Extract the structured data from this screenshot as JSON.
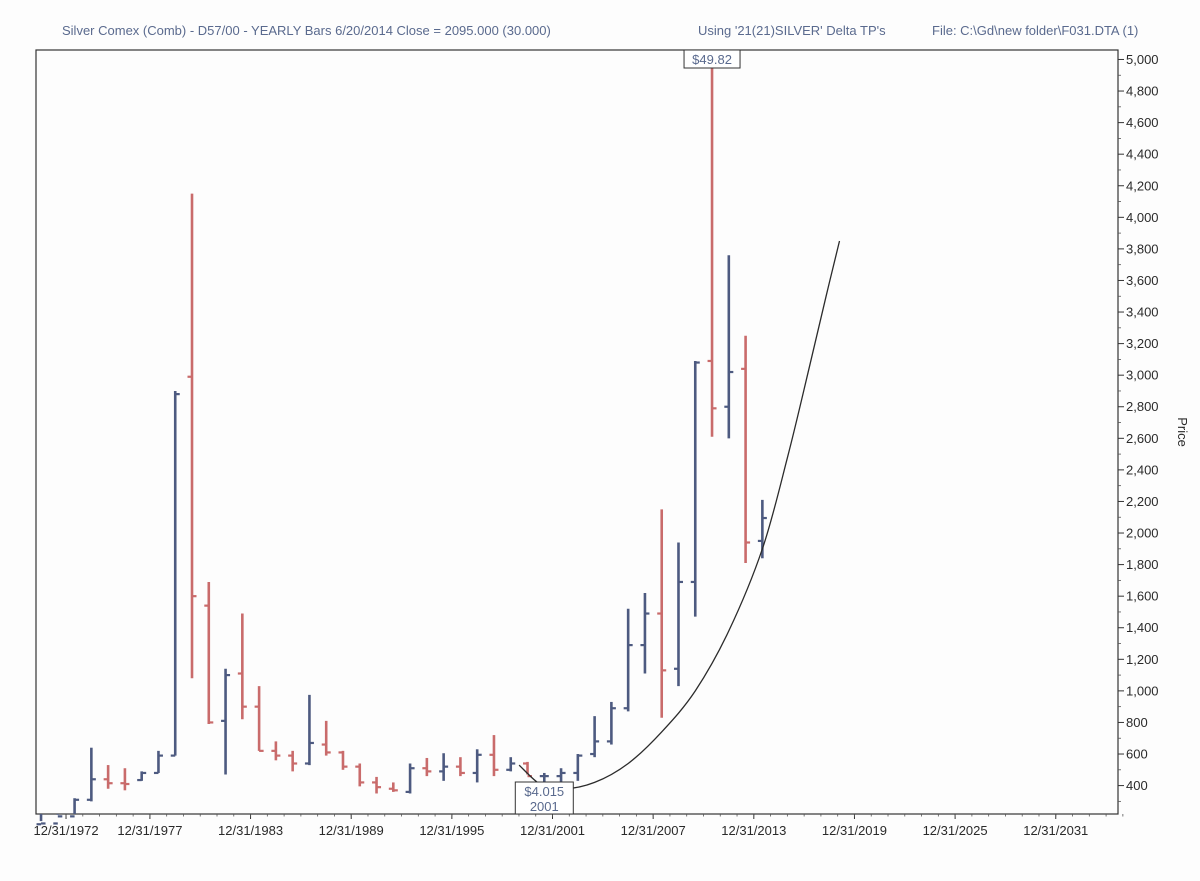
{
  "header": {
    "title": "Silver Comex (Comb) - D57/00  - YEARLY Bars  6/20/2014 Close = 2095.000 (30.000)",
    "using": "Using '21(21)SILVER' Delta TP's",
    "file": "File: C:\\Gd\\new folder\\F031.DTA (1)"
  },
  "chart_data": {
    "type": "ohlc",
    "ylabel": "Price",
    "xlabel": "",
    "ylim": [
      220,
      5060
    ],
    "xlim": [
      1971.2,
      2035.7
    ],
    "x_ticks": [
      {
        "label": "12/31/1972",
        "year": 1972.99
      },
      {
        "label": "12/31/1977",
        "year": 1977.99
      },
      {
        "label": "12/31/1983",
        "year": 1983.99
      },
      {
        "label": "12/31/1989",
        "year": 1989.99
      },
      {
        "label": "12/31/1995",
        "year": 1995.99
      },
      {
        "label": "12/31/2001",
        "year": 2001.99
      },
      {
        "label": "12/31/2007",
        "year": 2007.99
      },
      {
        "label": "12/31/2013",
        "year": 2013.99
      },
      {
        "label": "12/31/2019",
        "year": 2019.99
      },
      {
        "label": "12/31/2025",
        "year": 2025.99
      },
      {
        "label": "12/31/2031",
        "year": 2031.99
      }
    ],
    "y_ticks": [
      "400",
      "600",
      "800",
      "1,000",
      "1,200",
      "1,400",
      "1,600",
      "1,800",
      "2,000",
      "2,200",
      "2,400",
      "2,600",
      "2,800",
      "3,000",
      "3,200",
      "3,400",
      "3,600",
      "3,800",
      "4,000",
      "4,200",
      "4,400",
      "4,600",
      "4,800",
      "5,000"
    ],
    "y_tick_values": [
      400,
      600,
      800,
      1000,
      1200,
      1400,
      1600,
      1800,
      2000,
      2200,
      2400,
      2600,
      2800,
      3000,
      3200,
      3400,
      3600,
      3800,
      4000,
      4200,
      4400,
      4600,
      4800,
      5000
    ],
    "colors": {
      "up": "#4d5a80",
      "down": "#c96b6b",
      "curve": "#2b2b2b",
      "axis": "#333333"
    },
    "bars": [
      {
        "year": 1971,
        "open": 155,
        "high": 175,
        "low": 145,
        "close": 160
      },
      {
        "year": 1972,
        "open": 160,
        "high": 215,
        "low": 150,
        "close": 205
      },
      {
        "year": 1973,
        "open": 205,
        "high": 320,
        "low": 200,
        "close": 310
      },
      {
        "year": 1974,
        "open": 310,
        "high": 640,
        "low": 300,
        "close": 440
      },
      {
        "year": 1975,
        "open": 440,
        "high": 530,
        "low": 380,
        "close": 415
      },
      {
        "year": 1976,
        "open": 415,
        "high": 510,
        "low": 370,
        "close": 410
      },
      {
        "year": 1977,
        "open": 435,
        "high": 490,
        "low": 430,
        "close": 480
      },
      {
        "year": 1978,
        "open": 480,
        "high": 620,
        "low": 480,
        "close": 590
      },
      {
        "year": 1979,
        "open": 590,
        "high": 2900,
        "low": 590,
        "close": 2880
      },
      {
        "year": 1980,
        "open": 2990,
        "high": 4150,
        "low": 1080,
        "close": 1600
      },
      {
        "year": 1981,
        "open": 1540,
        "high": 1690,
        "low": 790,
        "close": 800
      },
      {
        "year": 1982,
        "open": 810,
        "high": 1140,
        "low": 470,
        "close": 1100
      },
      {
        "year": 1983,
        "open": 1110,
        "high": 1490,
        "low": 820,
        "close": 900
      },
      {
        "year": 1984,
        "open": 900,
        "high": 1030,
        "low": 620,
        "close": 620
      },
      {
        "year": 1985,
        "open": 620,
        "high": 680,
        "low": 560,
        "close": 590
      },
      {
        "year": 1986,
        "open": 590,
        "high": 620,
        "low": 490,
        "close": 540
      },
      {
        "year": 1987,
        "open": 540,
        "high": 975,
        "low": 530,
        "close": 670
      },
      {
        "year": 1988,
        "open": 660,
        "high": 810,
        "low": 590,
        "close": 610
      },
      {
        "year": 1989,
        "open": 610,
        "high": 620,
        "low": 500,
        "close": 520
      },
      {
        "year": 1990,
        "open": 520,
        "high": 540,
        "low": 395,
        "close": 420
      },
      {
        "year": 1991,
        "open": 420,
        "high": 455,
        "low": 350,
        "close": 390
      },
      {
        "year": 1992,
        "open": 380,
        "high": 420,
        "low": 360,
        "close": 370
      },
      {
        "year": 1993,
        "open": 360,
        "high": 540,
        "low": 350,
        "close": 510
      },
      {
        "year": 1994,
        "open": 510,
        "high": 575,
        "low": 460,
        "close": 490
      },
      {
        "year": 1995,
        "open": 490,
        "high": 605,
        "low": 430,
        "close": 520
      },
      {
        "year": 1996,
        "open": 520,
        "high": 580,
        "low": 460,
        "close": 480
      },
      {
        "year": 1997,
        "open": 480,
        "high": 630,
        "low": 420,
        "close": 595
      },
      {
        "year": 1998,
        "open": 595,
        "high": 720,
        "low": 460,
        "close": 500
      },
      {
        "year": 1999,
        "open": 500,
        "high": 580,
        "low": 490,
        "close": 540
      },
      {
        "year": 2000,
        "open": 540,
        "high": 550,
        "low": 470,
        "close": 460
      },
      {
        "year": 2001,
        "open": 460,
        "high": 480,
        "low": 401,
        "close": 460
      },
      {
        "year": 2002,
        "open": 460,
        "high": 510,
        "low": 420,
        "close": 480
      },
      {
        "year": 2003,
        "open": 480,
        "high": 600,
        "low": 430,
        "close": 590
      },
      {
        "year": 2004,
        "open": 600,
        "high": 840,
        "low": 580,
        "close": 680
      },
      {
        "year": 2005,
        "open": 680,
        "high": 930,
        "low": 660,
        "close": 890
      },
      {
        "year": 2006,
        "open": 890,
        "high": 1520,
        "low": 870,
        "close": 1290
      },
      {
        "year": 2007,
        "open": 1290,
        "high": 1620,
        "low": 1110,
        "close": 1490
      },
      {
        "year": 2008,
        "open": 1490,
        "high": 2150,
        "low": 830,
        "close": 1130
      },
      {
        "year": 2009,
        "open": 1140,
        "high": 1940,
        "low": 1030,
        "close": 1690
      },
      {
        "year": 2010,
        "open": 1690,
        "high": 3090,
        "low": 1470,
        "close": 3080
      },
      {
        "year": 2011,
        "open": 3090,
        "high": 4982,
        "low": 2610,
        "close": 2790
      },
      {
        "year": 2012,
        "open": 2800,
        "high": 3760,
        "low": 2600,
        "close": 3020
      },
      {
        "year": 2013,
        "open": 3040,
        "high": 3250,
        "low": 1810,
        "close": 1940
      },
      {
        "year": 2014,
        "open": 1950,
        "high": 2210,
        "low": 1840,
        "close": 2095
      }
    ],
    "curve": {
      "points": [
        {
          "year": 2000.0,
          "price": 530
        },
        {
          "year": 2001.3,
          "price": 405
        },
        {
          "year": 2002.6,
          "price": 378
        },
        {
          "year": 2004.5,
          "price": 420
        },
        {
          "year": 2006.5,
          "price": 540
        },
        {
          "year": 2008.5,
          "price": 740
        },
        {
          "year": 2010.5,
          "price": 1000
        },
        {
          "year": 2012.5,
          "price": 1380
        },
        {
          "year": 2014.5,
          "price": 1900
        },
        {
          "year": 2016.0,
          "price": 2480
        },
        {
          "year": 2017.3,
          "price": 3050
        },
        {
          "year": 2018.3,
          "price": 3500
        },
        {
          "year": 2019.1,
          "price": 3850
        }
      ]
    },
    "annotations": [
      {
        "name": "high-label",
        "text": "$49.82",
        "year": 2011,
        "price": 4982,
        "position": "above"
      },
      {
        "name": "low-label",
        "text": "$4.015",
        "subtext": "2001",
        "year": 2001,
        "price": 401,
        "position": "below"
      }
    ]
  }
}
